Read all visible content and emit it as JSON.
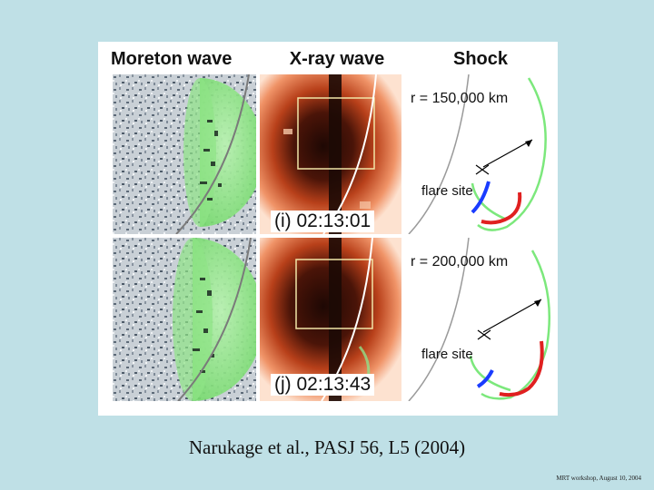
{
  "figure": {
    "headers": {
      "moreton": "Moreton wave",
      "xray": "X-ray wave",
      "shock": "Shock"
    },
    "rows": [
      {
        "timestamp": "(i) 02:13:01",
        "radius": "r = 150,000 km",
        "flare_label": "flare site"
      },
      {
        "timestamp": "(j) 02:13:43",
        "radius": "r = 200,000 km",
        "flare_label": "flare site"
      }
    ],
    "colors": {
      "front": "#7ce87c",
      "shock_blue": "#1a3cff",
      "shock_red": "#e02020",
      "sun_core": "#2b0c06",
      "sun_glow": "#e8683a"
    }
  },
  "caption": "Narukage et al., PASJ 56, L5 (2004)",
  "footer": "MRT workshop, August 10, 2004"
}
